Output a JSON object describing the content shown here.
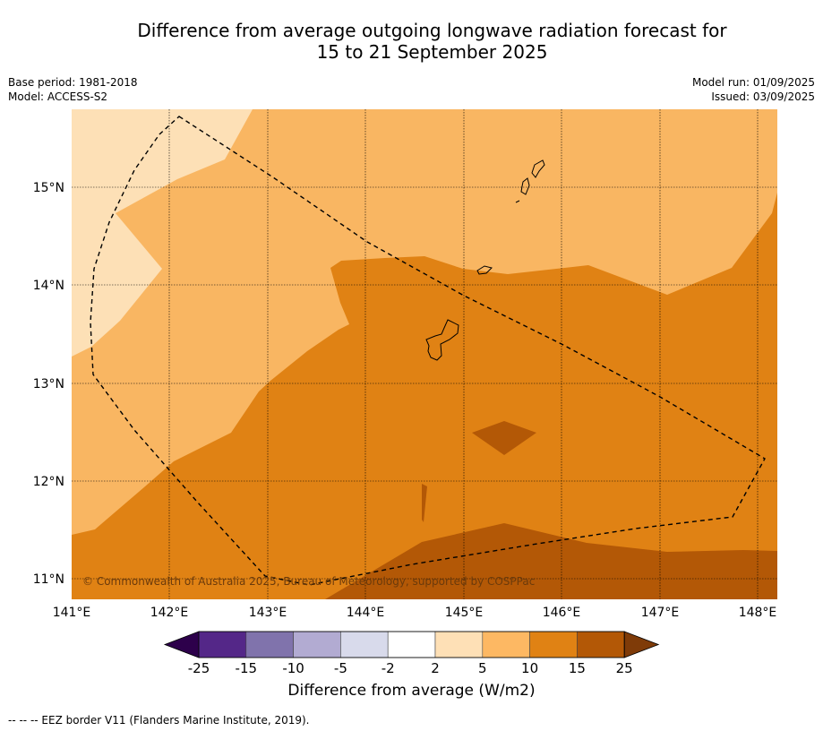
{
  "title": {
    "line1": "Difference from average outgoing longwave radiation forecast for",
    "line2": "15 to 21 September 2025"
  },
  "meta": {
    "base_period": "Base period: 1981-2018",
    "model": "Model: ACCESS-S2",
    "model_run": "Model run: 01/09/2025",
    "issued": "Issued: 03/09/2025"
  },
  "map": {
    "lon_ticks": [
      "141°E",
      "142°E",
      "143°E",
      "144°E",
      "145°E",
      "146°E",
      "147°E",
      "148°E"
    ],
    "lat_ticks": [
      "15°N",
      "14°N",
      "13°N",
      "12°N",
      "11°N"
    ],
    "copyright": "© Commonwealth of Australia 2025, Bureau of Meteorology, supported by COSPPac",
    "colors": {
      "c2_5": "#fde0b6",
      "c5_10": "#f9b662",
      "c10_15": "#e08214",
      "c15_25": "#b35806",
      "coast": "#000000",
      "eez": "#000000"
    }
  },
  "colorbar": {
    "title": "Difference from average (W/m2)",
    "ticks": [
      "-25",
      "-15",
      "-10",
      "-5",
      "-2",
      "2",
      "5",
      "10",
      "15",
      "25"
    ],
    "colors": [
      "#2d004b",
      "#542788",
      "#8073ac",
      "#b2abd2",
      "#d8daeb",
      "#ffffff",
      "#fee0b6",
      "#fdb863",
      "#e08214",
      "#b35806",
      "#7f3b08"
    ]
  },
  "footnote": "-- -- -- EEZ border V11 (Flanders Marine Institute, 2019)."
}
